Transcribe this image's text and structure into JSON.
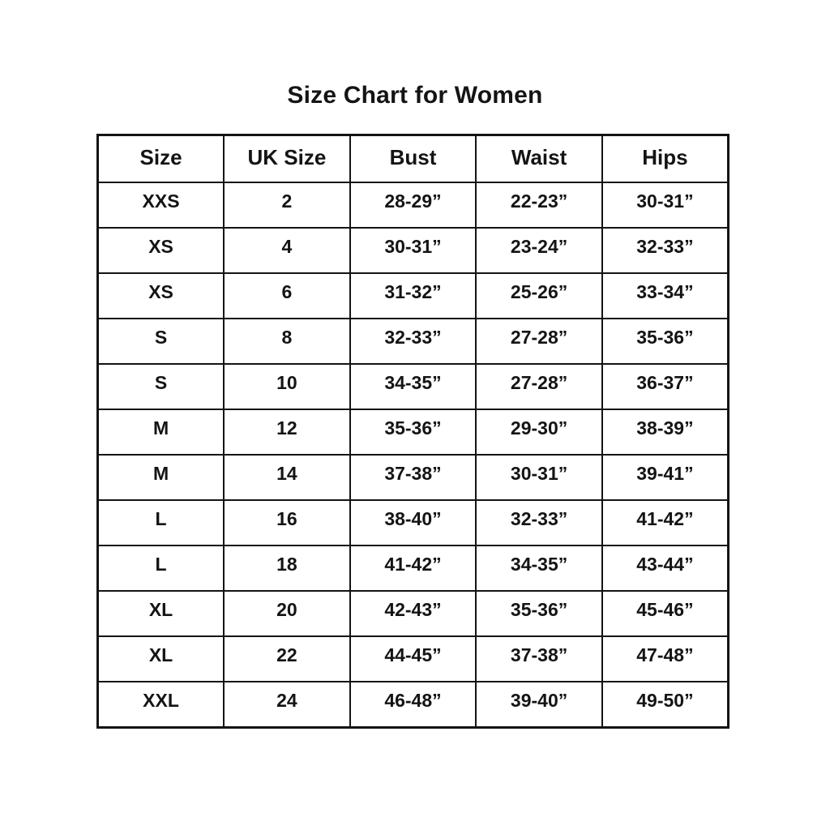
{
  "title": "Size Chart for Women",
  "colors": {
    "background": "#ffffff",
    "text": "#141414",
    "border": "#141414"
  },
  "chart_data": {
    "type": "table",
    "title": "Size Chart for Women",
    "columns": [
      "Size",
      "UK Size",
      "Bust",
      "Waist",
      "Hips"
    ],
    "rows": [
      [
        "XXS",
        "2",
        "28-29”",
        "22-23”",
        "30-31”"
      ],
      [
        "XS",
        "4",
        "30-31”",
        "23-24”",
        "32-33”"
      ],
      [
        "XS",
        "6",
        "31-32”",
        "25-26”",
        "33-34”"
      ],
      [
        "S",
        "8",
        "32-33”",
        "27-28”",
        "35-36”"
      ],
      [
        "S",
        "10",
        "34-35”",
        "27-28”",
        "36-37”"
      ],
      [
        "M",
        "12",
        "35-36”",
        "29-30”",
        "38-39”"
      ],
      [
        "M",
        "14",
        "37-38”",
        "30-31”",
        "39-41”"
      ],
      [
        "L",
        "16",
        "38-40”",
        "32-33”",
        "41-42”"
      ],
      [
        "L",
        "18",
        "41-42”",
        "34-35”",
        "43-44”"
      ],
      [
        "XL",
        "20",
        "42-43”",
        "35-36”",
        "45-46”"
      ],
      [
        "XL",
        "22",
        "44-45”",
        "37-38”",
        "47-48”"
      ],
      [
        "XXL",
        "24",
        "46-48”",
        "39-40”",
        "49-50”"
      ]
    ],
    "layout": {
      "grid": true,
      "header_row": true,
      "text_color": "#141414",
      "border_color": "#141414",
      "background": "#ffffff"
    }
  }
}
